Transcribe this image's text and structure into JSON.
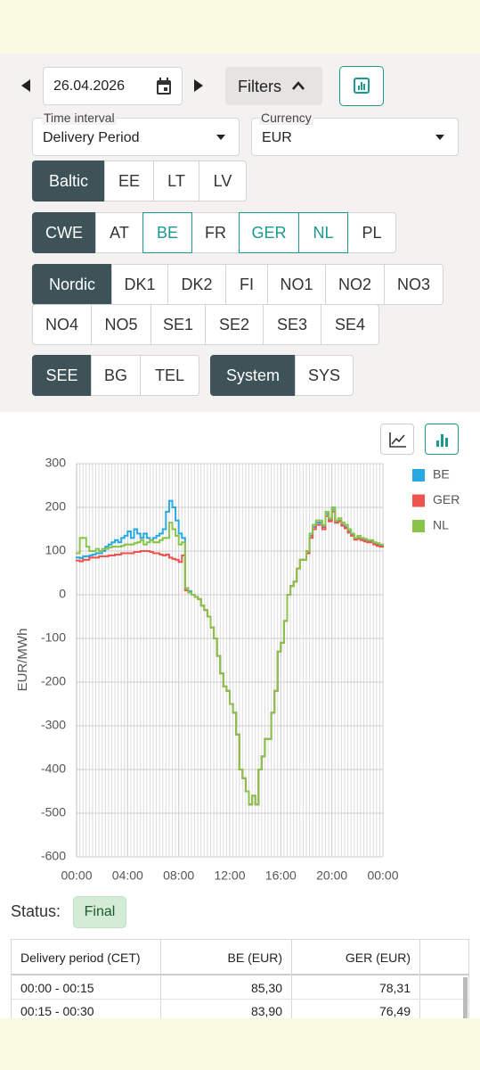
{
  "ui": {
    "date": "26.04.2026",
    "filters": "Filters",
    "time_interval": {
      "label": "Time interval",
      "value": "Delivery Period"
    },
    "currency": {
      "label": "Currency",
      "value": "EUR"
    },
    "chip_rows": [
      [
        [
          {
            "text": "Baltic",
            "state": "group"
          },
          {
            "text": "EE",
            "state": "normal"
          },
          {
            "text": "LT",
            "state": "normal"
          },
          {
            "text": "LV",
            "state": "normal"
          }
        ]
      ],
      [
        [
          {
            "text": "CWE",
            "state": "group"
          },
          {
            "text": "AT",
            "state": "normal"
          },
          {
            "text": "BE",
            "state": "selected"
          },
          {
            "text": "FR",
            "state": "normal"
          },
          {
            "text": "GER",
            "state": "selected"
          },
          {
            "text": "NL",
            "state": "selected"
          },
          {
            "text": "PL",
            "state": "normal"
          }
        ]
      ],
      [
        [
          {
            "text": "Nordic",
            "state": "group"
          },
          {
            "text": "DK1",
            "state": "normal"
          },
          {
            "text": "DK2",
            "state": "normal"
          },
          {
            "text": "FI",
            "state": "normal"
          },
          {
            "text": "NO1",
            "state": "normal"
          },
          {
            "text": "NO2",
            "state": "normal"
          },
          {
            "text": "NO3",
            "state": "normal"
          }
        ]
      ],
      [
        [
          {
            "text": "NO4",
            "state": "normal"
          },
          {
            "text": "NO5",
            "state": "normal"
          },
          {
            "text": "SE1",
            "state": "normal"
          },
          {
            "text": "SE2",
            "state": "normal"
          },
          {
            "text": "SE3",
            "state": "normal"
          },
          {
            "text": "SE4",
            "state": "normal"
          }
        ]
      ],
      [
        [
          {
            "text": "SEE",
            "state": "group"
          },
          {
            "text": "BG",
            "state": "normal"
          },
          {
            "text": "TEL",
            "state": "normal"
          }
        ],
        [
          {
            "text": "System",
            "state": "group"
          },
          {
            "text": "SYS",
            "state": "normal"
          }
        ]
      ]
    ],
    "status": {
      "label": "Status:",
      "value": "Final"
    }
  },
  "chart_data": {
    "type": "line",
    "drawstyle": "steps",
    "y_label": "EUR/MWh",
    "grid": true,
    "legend": "right",
    "x": [
      0,
      0.25,
      0.5,
      0.75,
      1,
      1.25,
      1.5,
      1.75,
      2,
      2.25,
      2.5,
      2.75,
      3,
      3.25,
      3.5,
      3.75,
      4,
      4.25,
      4.5,
      4.75,
      5,
      5.25,
      5.5,
      5.75,
      6,
      6.25,
      6.5,
      6.75,
      7,
      7.25,
      7.5,
      7.75,
      8,
      8.25,
      8.5,
      8.75,
      9,
      9.25,
      9.5,
      9.75,
      10,
      10.25,
      10.5,
      10.75,
      11,
      11.25,
      11.5,
      11.75,
      12,
      12.25,
      12.5,
      12.75,
      13,
      13.25,
      13.5,
      13.75,
      14,
      14.25,
      14.5,
      14.75,
      15,
      15.25,
      15.5,
      15.75,
      16,
      16.25,
      16.5,
      16.75,
      17,
      17.25,
      17.5,
      17.75,
      18,
      18.25,
      18.5,
      18.75,
      19,
      19.25,
      19.5,
      19.75,
      20,
      20.25,
      20.5,
      20.75,
      21,
      21.25,
      21.5,
      21.75,
      22,
      22.25,
      22.5,
      22.75,
      23,
      23.25,
      23.5,
      23.75
    ],
    "xlim": [
      0,
      24
    ],
    "xticks": [
      {
        "value": 0,
        "label": "00:00"
      },
      {
        "value": 4,
        "label": "04:00"
      },
      {
        "value": 8,
        "label": "08:00"
      },
      {
        "value": 12,
        "label": "12:00"
      },
      {
        "value": 16,
        "label": "16:00"
      },
      {
        "value": 20,
        "label": "20:00"
      },
      {
        "value": 24,
        "label": "00:00"
      }
    ],
    "ylim": [
      -600,
      300
    ],
    "yticks": [
      -600,
      -500,
      -400,
      -300,
      -200,
      -100,
      0,
      100,
      200,
      300
    ],
    "series": [
      {
        "name": "BE",
        "color": "#29a9e1",
        "values": [
          85.3,
          83.9,
          88,
          88,
          90,
          92,
          95,
          95,
          100,
          110,
          115,
          120,
          125,
          120,
          130,
          135,
          145,
          130,
          150,
          140,
          130,
          140,
          130,
          125,
          130,
          135,
          140,
          150,
          190,
          215,
          200,
          170,
          140,
          130,
          15,
          8,
          0,
          -5,
          -10,
          -25,
          -35,
          -50,
          -75,
          -100,
          -140,
          -180,
          -210,
          -220,
          -250,
          -270,
          -320,
          -400,
          -420,
          -450,
          -480,
          -460,
          -480,
          -400,
          -370,
          -330,
          -330,
          -270,
          -220,
          -130,
          -110,
          -60,
          0,
          20,
          30,
          60,
          80,
          80,
          95,
          135,
          155,
          165,
          165,
          155,
          185,
          170,
          195,
          165,
          170,
          160,
          155,
          145,
          138,
          128,
          130,
          128,
          125,
          122,
          122,
          118,
          115,
          112
        ]
      },
      {
        "name": "GER",
        "color": "#ef5350",
        "values": [
          78.31,
          76.49,
          80,
          80,
          85,
          85,
          85,
          88,
          88,
          88,
          90,
          90,
          92,
          92,
          95,
          95,
          95,
          95,
          98,
          98,
          100,
          100,
          100,
          98,
          95,
          95,
          92,
          90,
          92,
          85,
          82,
          80,
          75,
          90,
          10,
          5,
          0,
          -5,
          -10,
          -25,
          -35,
          -50,
          -75,
          -100,
          -140,
          -180,
          -210,
          -220,
          -250,
          -270,
          -320,
          -400,
          -420,
          -450,
          -480,
          -460,
          -480,
          -400,
          -370,
          -330,
          -330,
          -270,
          -220,
          -130,
          -110,
          -60,
          0,
          20,
          30,
          60,
          80,
          80,
          95,
          130,
          150,
          160,
          160,
          150,
          180,
          168,
          190,
          165,
          168,
          158,
          152,
          142,
          135,
          126,
          128,
          125,
          122,
          120,
          120,
          115,
          112,
          110
        ]
      },
      {
        "name": "NL",
        "color": "#8bc34a",
        "values": [
          95,
          130,
          130,
          110,
          100,
          100,
          105,
          100,
          105,
          105,
          108,
          110,
          110,
          110,
          112,
          115,
          115,
          115,
          118,
          120,
          125,
          115,
          120,
          125,
          120,
          120,
          125,
          130,
          130,
          165,
          150,
          135,
          115,
          120,
          15,
          5,
          0,
          -5,
          -10,
          -25,
          -35,
          -50,
          -75,
          -100,
          -140,
          -180,
          -210,
          -220,
          -250,
          -270,
          -320,
          -400,
          -420,
          -450,
          -480,
          -460,
          -480,
          -400,
          -370,
          -330,
          -330,
          -270,
          -220,
          -130,
          -110,
          -60,
          0,
          20,
          30,
          60,
          80,
          80,
          100,
          140,
          160,
          170,
          170,
          160,
          190,
          175,
          200,
          170,
          175,
          165,
          160,
          150,
          140,
          130,
          135,
          130,
          128,
          125,
          125,
          120,
          118,
          115
        ]
      }
    ]
  },
  "table": {
    "headers": [
      "Delivery period (CET)",
      "BE (EUR)",
      "GER (EUR)"
    ],
    "rows": [
      [
        "00:00 - 00:15",
        "85,30",
        "78,31"
      ],
      [
        "00:15 - 00:30",
        "83,90",
        "76,49"
      ]
    ]
  }
}
